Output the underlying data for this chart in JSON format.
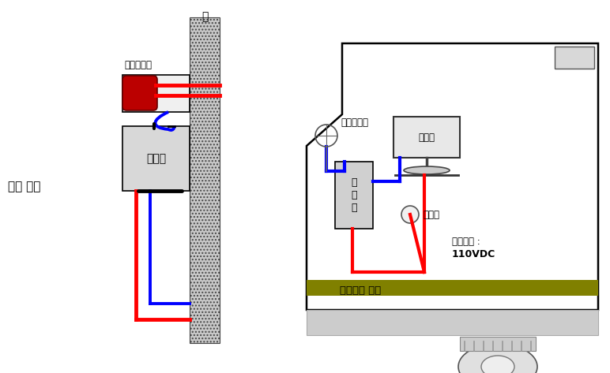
{
  "bg_color": "#ffffff",
  "red_wire": "#ff0000",
  "blue_wire": "#0000ff",
  "wall_fill": "#c8c8c8",
  "box_fill": "#d8d8d8",
  "box_light": "#e8e8e8",
  "olive": "#808000",
  "labels": {
    "tunnel": "터널 내부",
    "wall": "벽",
    "tx_antenna": "송신안테나",
    "transmitter": "송신기",
    "rx_antenna": "수신안테나",
    "receiver": "수신기",
    "monitor": "모니터",
    "converter": "컨버터",
    "power1": "사용전원 :",
    "power2": "110VDC",
    "vehicle_power": "차량전원 사용"
  }
}
